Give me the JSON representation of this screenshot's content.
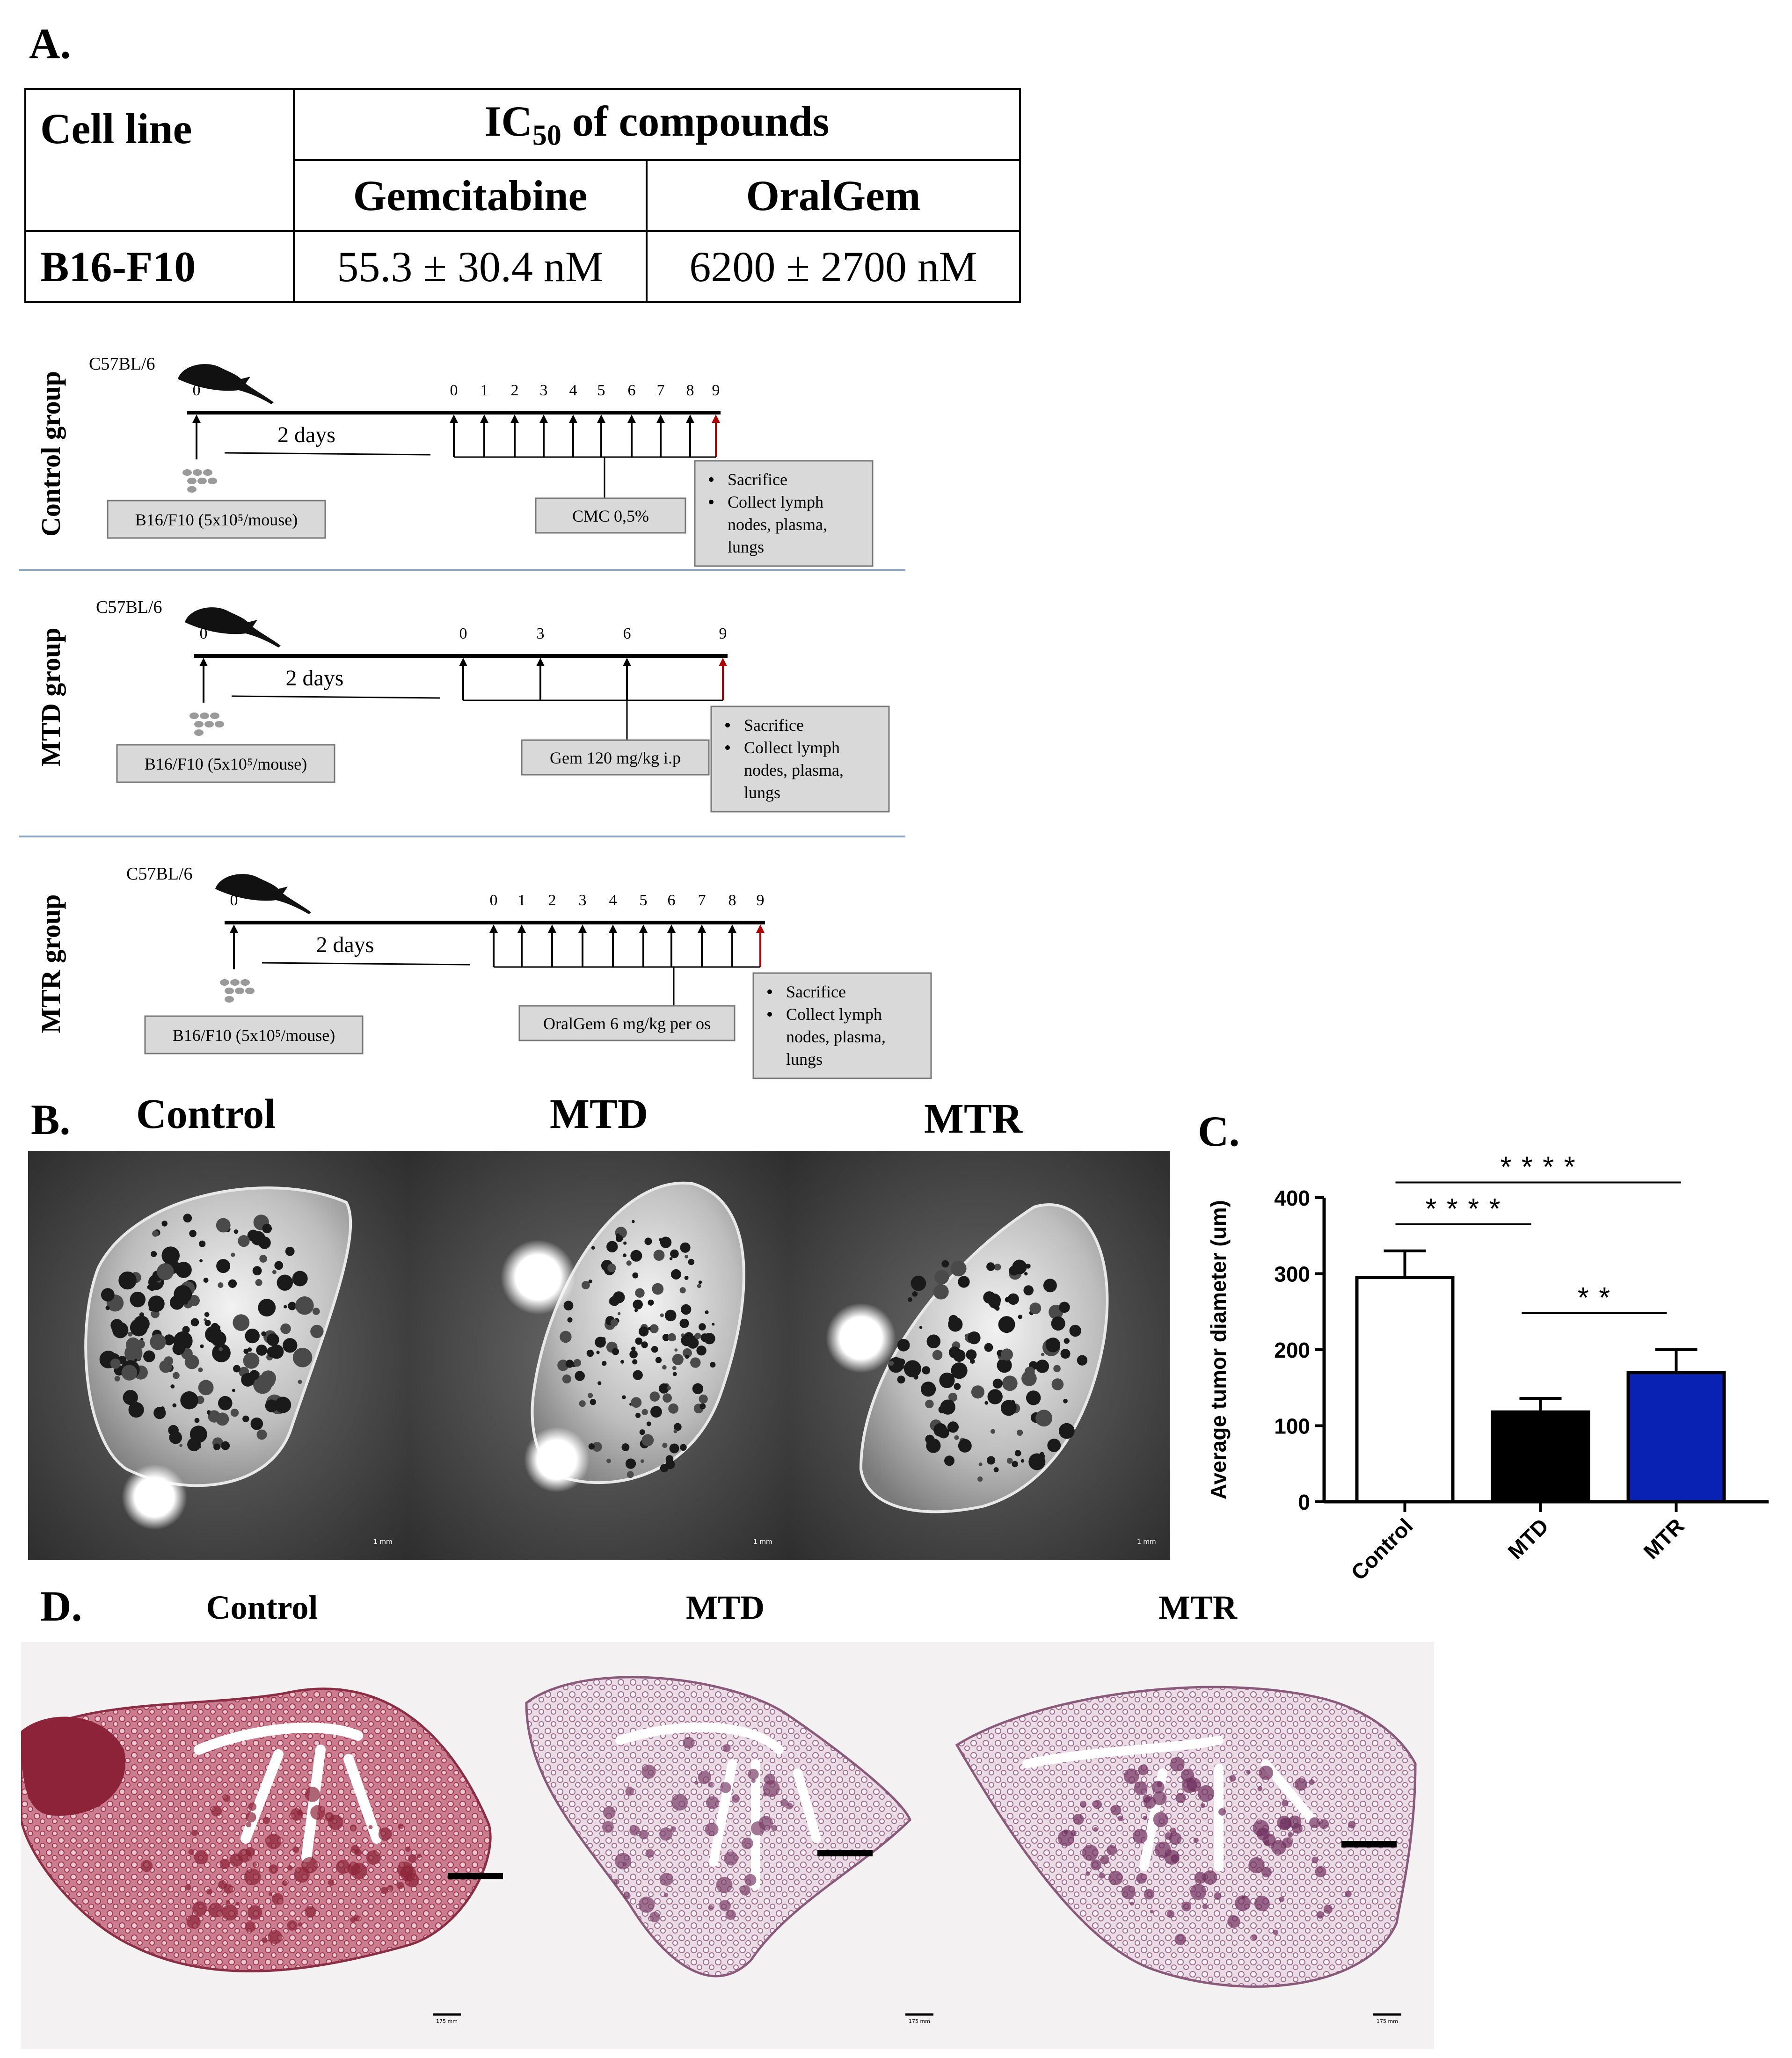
{
  "panel_a": {
    "letter": "A.",
    "table": {
      "cell_line_header": "Cell line",
      "ic50_prefix": "IC",
      "ic50_sub": "50",
      "ic50_suffix": " of compounds",
      "col_gem": "Gemcitabine",
      "col_oral": "OralGem",
      "row_label": "B16-F10",
      "val_gem": "55.3 ± 30.4 nM",
      "val_oral": "6200 ± 2700 nM"
    },
    "schemes": [
      {
        "group_label": "Control group",
        "strain": "C57BL/6",
        "day0": "0",
        "interval": "2 days",
        "days": [
          "0",
          "1",
          "2",
          "3",
          "4",
          "5",
          "6",
          "7",
          "8",
          "9"
        ],
        "cells_box": "B16/F10 (5x10⁵/mouse)",
        "treatment_box": "CMC 0,5%",
        "end_items": [
          "Sacrifice",
          "Collect lymph nodes, plasma, lungs"
        ],
        "end_lines": [
          "Sacrifice",
          "Collect lymph",
          "nodes, plasma,",
          "lungs"
        ]
      },
      {
        "group_label": "MTD group",
        "strain": "C57BL/6",
        "day0": "0",
        "interval": "2 days",
        "days": [
          "0",
          "3",
          "6",
          "9"
        ],
        "cells_box": "B16/F10 (5x10⁵/mouse)",
        "treatment_box": "Gem 120 mg/kg i.p",
        "end_items": [
          "Sacrifice",
          "Collect lymph nodes, plasma, lungs"
        ],
        "end_lines": [
          "Sacrifice",
          "Collect lymph",
          "nodes, plasma,",
          "lungs"
        ]
      },
      {
        "group_label": "MTR group",
        "strain": "C57BL/6",
        "day0": "0",
        "interval": "2 days",
        "days": [
          "0",
          "1",
          "2",
          "3",
          "4",
          "5",
          "6",
          "7",
          "8",
          "9"
        ],
        "cells_box": "B16/F10 (5x10⁵/mouse)",
        "treatment_box": "OralGem 6 mg/kg per os",
        "end_items": [
          "Sacrifice",
          "Collect lymph nodes, plasma, lungs"
        ],
        "end_lines": [
          "Sacrifice",
          "Collect lymph",
          "nodes, plasma,",
          "lungs"
        ]
      }
    ]
  },
  "panel_b": {
    "letter": "B.",
    "labels": [
      "Control",
      "MTD",
      "MTR"
    ],
    "scale": "1 mm"
  },
  "panel_c": {
    "letter": "C.",
    "significance": [
      {
        "from": "Control",
        "to": "MTR",
        "text": "* * * *"
      },
      {
        "from": "Control",
        "to": "MTD",
        "text": "* * * *"
      },
      {
        "from": "MTD",
        "to": "MTR",
        "text": "* *"
      }
    ]
  },
  "chart_data": {
    "type": "bar",
    "categories": [
      "Control",
      "MTD",
      "MTR"
    ],
    "values": [
      295,
      118,
      170
    ],
    "errors": [
      35,
      18,
      30
    ],
    "colors": [
      "#ffffff",
      "#000000",
      "#0a22b4"
    ],
    "title": "",
    "xlabel": "",
    "ylabel": "Average tumor diameter (um)",
    "ylim": [
      0,
      400
    ],
    "yticks": [
      "0",
      "100",
      "200",
      "300",
      "400"
    ],
    "grid": false
  },
  "panel_d": {
    "letter": "D.",
    "labels": [
      "Control",
      "MTD",
      "MTR"
    ],
    "scale": "175 mm"
  }
}
